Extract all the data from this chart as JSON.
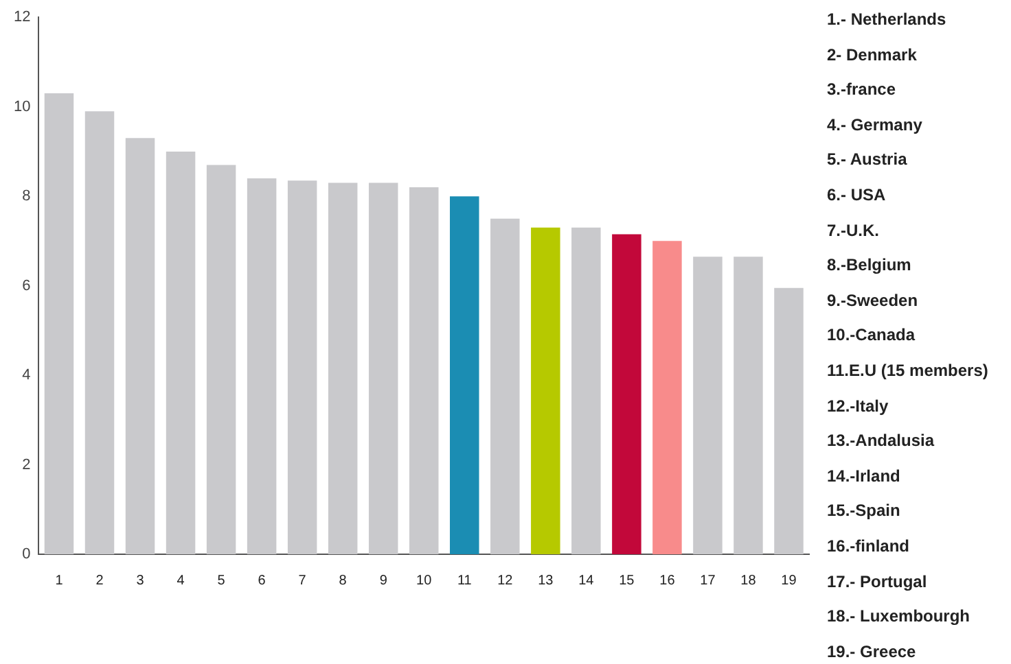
{
  "chart_data": {
    "type": "bar",
    "categories": [
      "1",
      "2",
      "3",
      "4",
      "5",
      "6",
      "7",
      "8",
      "9",
      "10",
      "11",
      "12",
      "13",
      "14",
      "15",
      "16",
      "17",
      "18",
      "19"
    ],
    "values": [
      10.3,
      9.9,
      9.3,
      9.0,
      8.7,
      8.4,
      8.35,
      8.3,
      8.3,
      8.2,
      8.0,
      7.5,
      7.3,
      7.3,
      7.15,
      7.0,
      6.65,
      6.65,
      5.95
    ],
    "colors": [
      "#c9c9cc",
      "#c9c9cc",
      "#c9c9cc",
      "#c9c9cc",
      "#c9c9cc",
      "#c9c9cc",
      "#c9c9cc",
      "#c9c9cc",
      "#c9c9cc",
      "#c9c9cc",
      "#1b8db3",
      "#c9c9cc",
      "#b6c900",
      "#c9c9cc",
      "#c2083a",
      "#f88b8b",
      "#c9c9cc",
      "#c9c9cc",
      "#c9c9cc"
    ],
    "ylim": [
      0,
      12
    ],
    "yticks": [
      0,
      2,
      4,
      6,
      8,
      10,
      12
    ],
    "grid": false,
    "legend": false,
    "annotations": [
      "1.- Netherlands",
      "2- Denmark",
      "3.-france",
      "4.- Germany",
      "5.- Austria",
      "6.- USA",
      "7.-U.K.",
      "8.-Belgium",
      "9.-Sweeden",
      "10.-Canada",
      "11.E.U (15 members)",
      "12.-Italy",
      "13.-Andalusia",
      "14.-Irland",
      "15.-Spain",
      "16.-finland",
      "17.- Portugal",
      "18.- Luxembourgh",
      "19.- Greece"
    ]
  }
}
